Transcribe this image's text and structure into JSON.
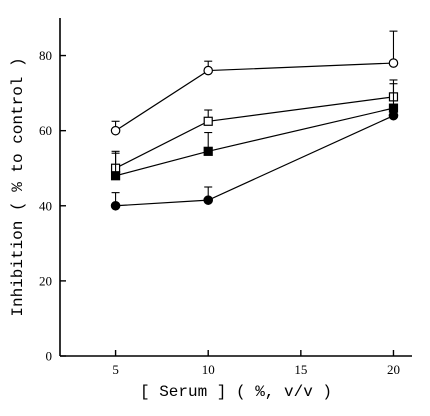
{
  "chart_data": {
    "type": "line",
    "xlabel": "[ Serum ] ( %, v/v )",
    "ylabel": "Inhibition ( % to control )",
    "x_ticks": [
      5,
      10,
      15,
      20
    ],
    "y_ticks": [
      0,
      20,
      40,
      60,
      80
    ],
    "xlim": [
      2,
      21
    ],
    "ylim": [
      0,
      90
    ],
    "grid": false,
    "legend": "none",
    "series": [
      {
        "marker": "open-circle",
        "x": [
          5,
          10,
          20
        ],
        "y": [
          60,
          76,
          78
        ],
        "error": [
          2.5,
          2.5,
          8.5
        ]
      },
      {
        "marker": "open-square",
        "x": [
          5,
          10,
          20
        ],
        "y": [
          50,
          62.5,
          69
        ],
        "error": [
          4.5,
          3,
          4.5
        ]
      },
      {
        "marker": "filled-square",
        "x": [
          5,
          10,
          20
        ],
        "y": [
          48,
          54.5,
          66
        ],
        "error": [
          6,
          5,
          6.5
        ]
      },
      {
        "marker": "filled-circle",
        "x": [
          5,
          10,
          20
        ],
        "y": [
          40,
          41.5,
          64
        ],
        "error": [
          3.5,
          3.5,
          0
        ]
      }
    ]
  }
}
